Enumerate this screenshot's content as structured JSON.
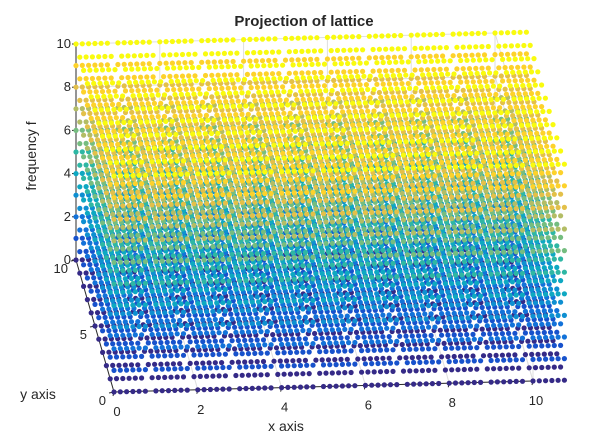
{
  "chart_data": {
    "type": "scatter",
    "subtype": "scatter3d",
    "title": "Projection of lattice",
    "xlabel": "x axis",
    "ylabel": "y axis",
    "zlabel": "frequency f",
    "xlim": [
      0,
      10
    ],
    "ylim": [
      0,
      10
    ],
    "zlim": [
      0,
      10
    ],
    "xticks": [
      "0",
      "2",
      "4",
      "6",
      "8",
      "10"
    ],
    "yticks": [
      "0",
      "5",
      "10"
    ],
    "zticks": [
      "0",
      "2",
      "4",
      "6",
      "8",
      "10"
    ],
    "grid": true,
    "lattice": {
      "x": [
        0,
        1,
        2,
        3,
        4,
        5,
        6,
        7,
        8,
        9,
        10
      ],
      "y": [
        0,
        1,
        2,
        3,
        4,
        5,
        6,
        7,
        8,
        9,
        10
      ],
      "frequency_rule": "f = sqrt(x^2 + y^2), points with f <= 10",
      "color_by": "frequency f"
    },
    "colormap": [
      "#352a87",
      "#0f5cdd",
      "#1481d6",
      "#06a4ca",
      "#2eb7a4",
      "#87bf77",
      "#d1bb59",
      "#fec832",
      "#f9fb0e"
    ]
  }
}
